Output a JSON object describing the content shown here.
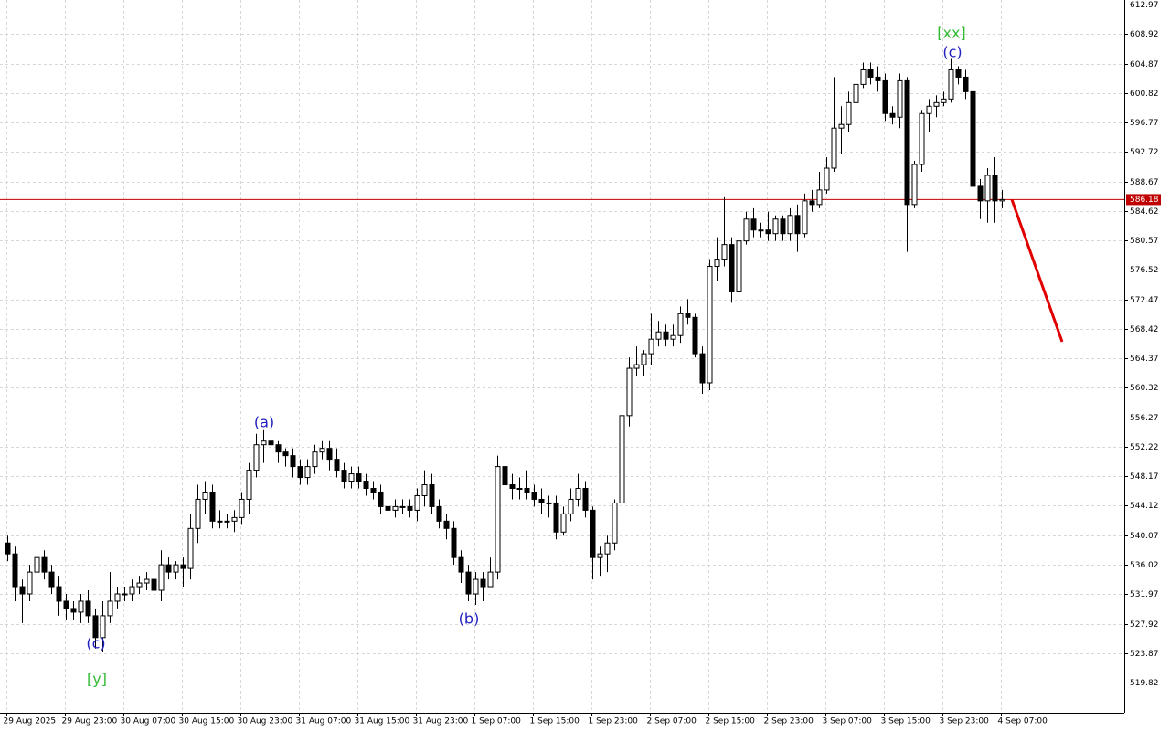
{
  "chart_data": {
    "type": "candlestick",
    "series": [
      {
        "name": null,
        "up_color": "#ffffff",
        "down_color": "#000000",
        "open": [
          539,
          537.5,
          533,
          532,
          535,
          537,
          535,
          533,
          531,
          530,
          529.5,
          531,
          529,
          526,
          529,
          531,
          532,
          532,
          533,
          533.5,
          534,
          532.5,
          536,
          535,
          536,
          535.5,
          541,
          545,
          546,
          542,
          542,
          542,
          542.5,
          545,
          549,
          552.5,
          553,
          552.5,
          551.5,
          551,
          549.5,
          548,
          549.5,
          551.5,
          552,
          550.5,
          549,
          547.5,
          548.5,
          547.5,
          546.5,
          546,
          544,
          543.5,
          544,
          544,
          543.5,
          545.5,
          547,
          544,
          542,
          541,
          537,
          535,
          532,
          534,
          533,
          535,
          549.5,
          547,
          546.5,
          546.5,
          546,
          545,
          544.5,
          544.5,
          540.5,
          543,
          545,
          546.5,
          543.5,
          537,
          537.5,
          539,
          544.5,
          556.5,
          563,
          563.5,
          565,
          567,
          568,
          567,
          567.5,
          570.5,
          570,
          565,
          561,
          577,
          578,
          580,
          573.5,
          580.5,
          583.5,
          582,
          582,
          581.5,
          583.5,
          581.5,
          584,
          581.5,
          586,
          585.5,
          587.5,
          590.5,
          596,
          596.5,
          599.5,
          602,
          604,
          603,
          602.5,
          598,
          597.5,
          602.5,
          585.5,
          591,
          598,
          599,
          599.5,
          600,
          604,
          603,
          601,
          588,
          586,
          589.5,
          586
        ],
        "high": [
          540,
          538.5,
          534,
          536,
          539,
          538,
          536,
          534.5,
          532,
          531,
          532,
          532.5,
          530,
          531,
          535,
          533,
          533,
          534,
          534.5,
          535,
          535,
          538,
          537,
          536.5,
          537,
          543,
          547,
          547.5,
          547,
          543.5,
          543,
          543.5,
          546,
          550,
          554,
          554.5,
          554,
          553,
          552,
          552,
          550.5,
          550.5,
          552.5,
          553,
          553,
          552,
          550,
          549.5,
          549.5,
          548.5,
          547.5,
          547,
          545,
          545,
          545,
          545,
          546.5,
          549,
          548.5,
          545,
          543,
          542,
          538,
          536,
          535,
          535,
          537,
          551,
          551.5,
          548.5,
          548,
          549,
          547,
          546.5,
          545.5,
          545.5,
          544,
          546.5,
          548.5,
          547.5,
          544,
          538.5,
          540,
          545,
          557,
          564.5,
          566,
          565.5,
          570.5,
          569.5,
          569,
          569,
          571.5,
          572.5,
          570.5,
          566,
          578,
          581,
          586.5,
          581,
          581.5,
          584.5,
          585,
          583,
          584.5,
          584,
          584,
          585,
          585.5,
          587,
          587.5,
          590,
          592,
          603,
          599,
          601,
          604,
          605,
          605,
          604.5,
          603.5,
          599,
          603.5,
          603,
          591.5,
          598.5,
          600,
          600.5,
          601,
          605.5,
          604.5,
          604,
          601.5,
          589,
          590.5,
          592,
          587.5
        ],
        "low": [
          536.5,
          531,
          528,
          531,
          534,
          534,
          532,
          529,
          528.5,
          528.5,
          528,
          528,
          524.5,
          524,
          528,
          530,
          531,
          531,
          532,
          532.5,
          531.5,
          531,
          534,
          534,
          533,
          534,
          539,
          543,
          541,
          541,
          541,
          540.5,
          541.5,
          543,
          548,
          550,
          551.5,
          550,
          549.5,
          548,
          547,
          547,
          548.5,
          550.5,
          549,
          548,
          546.5,
          546.5,
          546.5,
          545.5,
          545,
          543,
          541.5,
          542.5,
          543,
          542.5,
          542,
          544,
          543,
          541,
          539.5,
          536,
          533.5,
          531,
          530.5,
          531,
          533,
          534,
          546,
          545,
          545,
          545,
          544,
          543,
          542.5,
          539.5,
          540,
          542,
          544,
          542.5,
          534,
          534.5,
          535,
          538,
          544.5,
          555,
          562,
          562,
          563.5,
          566,
          566,
          566,
          566.5,
          569,
          564.5,
          559.5,
          560,
          575,
          577,
          572,
          572,
          580,
          581,
          581,
          580.5,
          580.5,
          580.5,
          580.5,
          579,
          581,
          584.5,
          585,
          587,
          590,
          592.5,
          595.5,
          599,
          601.5,
          602,
          601,
          597,
          596.5,
          596,
          579,
          585,
          590,
          595.5,
          597.5,
          599,
          599.5,
          602,
          600,
          587,
          583.5,
          583,
          583,
          585
        ],
        "close": [
          537.5,
          533,
          532,
          535,
          537,
          535,
          533,
          531,
          530,
          529.5,
          531,
          529,
          526,
          529,
          531,
          532,
          532,
          533,
          533.5,
          534,
          532.5,
          536,
          535,
          536,
          535.5,
          541,
          545,
          546,
          542,
          542,
          542,
          542.5,
          545,
          549,
          552.5,
          553,
          552.5,
          551.5,
          551,
          549.5,
          548,
          549.5,
          551.5,
          552,
          550.5,
          549,
          547.5,
          548.5,
          547.5,
          546.5,
          546,
          544,
          543.5,
          544,
          544,
          543.5,
          545.5,
          547,
          544,
          542,
          541,
          537,
          535,
          532,
          534,
          533,
          535,
          549.5,
          547,
          546.5,
          546.5,
          546,
          545,
          544.5,
          544.5,
          540.5,
          543,
          545,
          546.5,
          543.5,
          537,
          537.5,
          539,
          544.5,
          556.5,
          563,
          563.5,
          565,
          567,
          568,
          567,
          567.5,
          570.5,
          570,
          565,
          561,
          577,
          578,
          580,
          573.5,
          580.5,
          583.5,
          582,
          582,
          581.5,
          583.5,
          581.5,
          584,
          581.5,
          586,
          585.5,
          587.5,
          590.5,
          596,
          596.5,
          599.5,
          602,
          604,
          603,
          602.5,
          598,
          597.5,
          602.5,
          585.5,
          591,
          598,
          599,
          599.5,
          600,
          604,
          603,
          601,
          588,
          586,
          589.5,
          586,
          586.18
        ]
      }
    ],
    "categories": [
      "29 Aug 2025",
      null,
      null,
      null,
      null,
      null,
      null,
      null,
      "29 Aug 23:00",
      null,
      null,
      null,
      null,
      null,
      null,
      null,
      "30 Aug 07:00",
      null,
      null,
      null,
      null,
      null,
      null,
      null,
      "30 Aug 15:00",
      null,
      null,
      null,
      null,
      null,
      null,
      null,
      "30 Aug 23:00",
      null,
      null,
      null,
      null,
      null,
      null,
      null,
      "31 Aug 07:00",
      null,
      null,
      null,
      null,
      null,
      null,
      null,
      "31 Aug 15:00",
      null,
      null,
      null,
      null,
      null,
      null,
      null,
      "31 Aug 23:00",
      null,
      null,
      null,
      null,
      null,
      null,
      null,
      "1 Sep 07:00",
      null,
      null,
      null,
      null,
      null,
      null,
      null,
      "1 Sep 15:00",
      null,
      null,
      null,
      null,
      null,
      null,
      null,
      "1 Sep 23:00",
      null,
      null,
      null,
      null,
      null,
      null,
      null,
      "2 Sep 07:00",
      null,
      null,
      null,
      null,
      null,
      null,
      null,
      "2 Sep 15:00",
      null,
      null,
      null,
      null,
      null,
      null,
      null,
      "2 Sep 23:00",
      null,
      null,
      null,
      null,
      null,
      null,
      null,
      "3 Sep 07:00",
      null,
      null,
      null,
      null,
      null,
      null,
      null,
      "3 Sep 15:00",
      null,
      null,
      null,
      null,
      null,
      null,
      null,
      "3 Sep 23:00",
      null,
      null,
      null,
      null,
      null,
      null,
      null,
      "4 Sep 07:00"
    ],
    "ylim": [
      515.68,
      613.6
    ],
    "yticks": [
      612.97,
      608.92,
      604.87,
      600.82,
      596.77,
      592.72,
      588.67,
      584.62,
      580.57,
      576.52,
      572.47,
      568.42,
      564.37,
      560.32,
      556.27,
      552.22,
      548.17,
      544.12,
      540.07,
      536.02,
      531.97,
      527.92,
      523.87,
      519.82
    ],
    "grid": true,
    "last_price": 586.18,
    "last_price_color": "#c00000",
    "forecast": {
      "color": "#e00000",
      "values": [
        586.18,
        566.65
      ]
    },
    "annotations": [
      {
        "text": "(a)",
        "color": "#2020c0"
      },
      {
        "text": "(b)",
        "color": "#2020c0"
      },
      {
        "text": "(c)",
        "color": "#2020c0"
      },
      {
        "text": "[xx]",
        "color": "#33bb33"
      },
      {
        "text": "(c)",
        "color": "#2020c0"
      },
      {
        "text": "[y]",
        "color": "#33bb33"
      }
    ]
  }
}
